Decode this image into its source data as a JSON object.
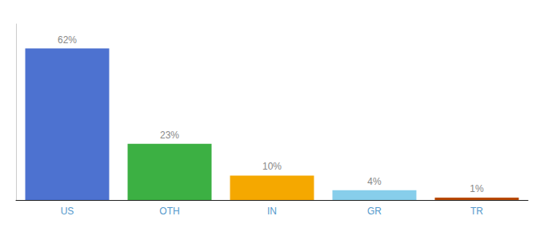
{
  "chart_data": {
    "type": "bar",
    "categories": [
      "US",
      "OTH",
      "IN",
      "GR",
      "TR"
    ],
    "values": [
      62,
      23,
      10,
      4,
      1
    ],
    "value_labels": [
      "62%",
      "23%",
      "10%",
      "4%",
      "1%"
    ],
    "colors": [
      "#4d72d0",
      "#3cb043",
      "#f5a800",
      "#87ceeb",
      "#b94a00"
    ],
    "ylim": [
      0,
      72
    ],
    "data_labels": true,
    "tick_labels": "x",
    "grid": false
  }
}
